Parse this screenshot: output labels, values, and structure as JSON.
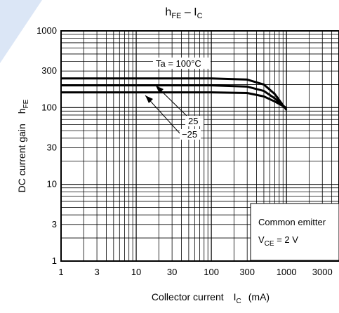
{
  "chart_data": {
    "type": "line",
    "title": {
      "main": "h",
      "main_sub": "FE",
      "sep": " – ",
      "tail": "I",
      "tail_sub": "C"
    },
    "xlabel": {
      "main": "Collector current",
      "sym": "I",
      "sym_sub": "C",
      "unit": "(mA)"
    },
    "ylabel": {
      "main": "DC current gain",
      "sym": "h",
      "sym_sub": "FE"
    },
    "x_scale": "log",
    "y_scale": "log",
    "xlim": [
      1,
      5000
    ],
    "ylim": [
      1,
      1000
    ],
    "x_ticks": [
      1,
      3,
      10,
      30,
      100,
      300,
      1000,
      3000
    ],
    "x_tick_labels": [
      "1",
      "3",
      "10",
      "30",
      "100",
      "300",
      "1000",
      "3000"
    ],
    "y_ticks": [
      1,
      3,
      10,
      30,
      100,
      300,
      1000
    ],
    "y_tick_labels": [
      "1",
      "3",
      "10",
      "30",
      "100",
      "300",
      "1000"
    ],
    "grid": true,
    "series": [
      {
        "name": "Ta = 100°C",
        "points": [
          [
            1,
            240
          ],
          [
            100,
            240
          ],
          [
            300,
            232
          ],
          [
            500,
            200
          ],
          [
            700,
            150
          ],
          [
            1000,
            93
          ]
        ]
      },
      {
        "name": "25",
        "points": [
          [
            1,
            195
          ],
          [
            100,
            195
          ],
          [
            300,
            188
          ],
          [
            500,
            165
          ],
          [
            700,
            132
          ],
          [
            1000,
            97
          ]
        ]
      },
      {
        "name": "−25",
        "points": [
          [
            1,
            158
          ],
          [
            100,
            158
          ],
          [
            300,
            155
          ],
          [
            500,
            140
          ],
          [
            700,
            120
          ],
          [
            1000,
            99
          ]
        ]
      }
    ],
    "annotations": {
      "ta_label": "Ta = 100°C",
      "label_25": "25",
      "label_m25": "−25",
      "conditions_line1": "Common emitter",
      "conditions_vce": "V",
      "conditions_vce_sub": "CE",
      "conditions_vce_val": " = 2 V"
    }
  }
}
